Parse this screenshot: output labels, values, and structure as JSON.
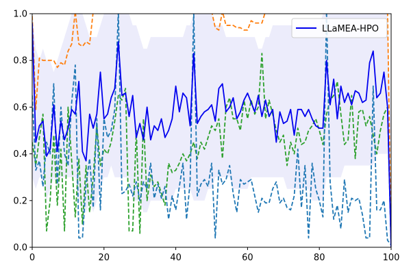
{
  "chart_data": {
    "type": "line",
    "title": "",
    "xlabel": "",
    "ylabel": "",
    "xlim": [
      0,
      100
    ],
    "ylim": [
      0,
      1
    ],
    "xticks": [
      0,
      20,
      40,
      60,
      80,
      100
    ],
    "yticks": [
      0.0,
      0.2,
      0.4,
      0.6,
      0.8,
      1.0
    ],
    "xtick_labels": [
      "0",
      "20",
      "40",
      "60",
      "80",
      "100"
    ],
    "ytick_labels": [
      "0.0",
      "0.2",
      "0.4",
      "0.6",
      "0.8",
      "1.0"
    ],
    "grid": false,
    "legend_position": "top-right",
    "legend": [
      {
        "name": "LLaMEA-HPO",
        "color": "#0000ee"
      }
    ],
    "x": [
      0,
      1,
      2,
      3,
      4,
      5,
      6,
      7,
      8,
      9,
      10,
      11,
      12,
      13,
      14,
      15,
      16,
      17,
      18,
      19,
      20,
      21,
      22,
      23,
      24,
      25,
      26,
      27,
      28,
      29,
      30,
      31,
      32,
      33,
      34,
      35,
      36,
      37,
      38,
      39,
      40,
      41,
      42,
      43,
      44,
      45,
      46,
      47,
      48,
      49,
      50,
      51,
      52,
      53,
      54,
      55,
      56,
      57,
      58,
      59,
      60,
      61,
      62,
      63,
      64,
      65,
      66,
      67,
      68,
      69,
      70,
      71,
      72,
      73,
      74,
      75,
      76,
      77,
      78,
      79,
      80,
      81,
      82,
      83,
      84,
      85,
      86,
      87,
      88,
      89,
      90,
      91,
      92,
      93,
      94,
      95,
      96,
      97,
      98,
      99,
      100
    ],
    "band": {
      "color": "#e6e6fa",
      "lower": [
        0.3,
        0.25,
        0.3,
        0.3,
        0.2,
        0.25,
        0.3,
        0.25,
        0.3,
        0.3,
        0.3,
        0.3,
        0.3,
        0.2,
        0.15,
        0.15,
        0.2,
        0.15,
        0.2,
        0.25,
        0.3,
        0.3,
        0.35,
        0.3,
        0.3,
        0.3,
        0.3,
        0.3,
        0.2,
        0.2,
        0.2,
        0.15,
        0.15,
        0.2,
        0.2,
        0.2,
        0.2,
        0.2,
        0.2,
        0.2,
        0.25,
        0.25,
        0.25,
        0.25,
        0.25,
        0.2,
        0.2,
        0.2,
        0.2,
        0.25,
        0.25,
        0.3,
        0.3,
        0.3,
        0.3,
        0.3,
        0.25,
        0.25,
        0.25,
        0.25,
        0.25,
        0.3,
        0.3,
        0.3,
        0.3,
        0.3,
        0.3,
        0.3,
        0.3,
        0.3,
        0.3,
        0.25,
        0.25,
        0.25,
        0.25,
        0.25,
        0.25,
        0.25,
        0.2,
        0.2,
        0.2,
        0.2,
        0.3,
        0.3,
        0.3,
        0.3,
        0.3,
        0.35,
        0.35,
        0.35,
        0.35,
        0.35,
        0.35,
        0.35,
        0.35,
        0.35,
        0.4,
        0.4,
        0.4,
        0.4,
        0.05
      ],
      "upper": [
        1.0,
        0.85,
        0.8,
        0.85,
        0.8,
        0.8,
        0.75,
        0.8,
        0.85,
        0.9,
        0.95,
        1.0,
        1.0,
        1.0,
        1.0,
        0.95,
        0.9,
        0.9,
        0.9,
        0.95,
        1.0,
        1.0,
        1.0,
        1.0,
        1.0,
        1.0,
        1.0,
        1.0,
        0.95,
        0.95,
        0.9,
        0.85,
        0.85,
        0.9,
        0.9,
        0.9,
        0.9,
        0.9,
        0.9,
        0.9,
        0.9,
        0.9,
        0.9,
        0.95,
        0.95,
        1.0,
        1.0,
        1.0,
        1.0,
        1.0,
        1.0,
        0.95,
        0.95,
        0.95,
        0.9,
        0.9,
        0.9,
        0.9,
        0.9,
        0.9,
        0.9,
        0.9,
        0.9,
        0.85,
        0.85,
        0.9,
        0.9,
        0.95,
        0.95,
        0.95,
        0.95,
        0.95,
        0.95,
        0.95,
        0.95,
        0.95,
        0.95,
        0.95,
        0.95,
        0.95,
        0.95,
        1.0,
        1.0,
        1.0,
        1.0,
        1.0,
        1.0,
        1.0,
        1.0,
        1.0,
        1.0,
        1.0,
        1.0,
        1.0,
        1.0,
        1.0,
        1.0,
        1.0,
        1.0,
        1.0,
        0.5
      ]
    },
    "series": [
      {
        "name": "",
        "color": "#ff7f0e",
        "dash": true,
        "values": [
          0.99,
          0.59,
          0.81,
          0.8,
          0.8,
          0.8,
          0.8,
          0.77,
          0.79,
          0.78,
          0.84,
          0.87,
          1.01,
          0.87,
          0.86,
          0.88,
          0.87,
          1.01,
          1.01,
          1.01,
          1.01,
          1.01,
          1.01,
          1.01,
          1.01,
          1.01,
          1.01,
          1.01,
          1.01,
          1.01,
          1.01,
          1.01,
          1.01,
          1.01,
          1.01,
          1.01,
          1.01,
          1.01,
          1.01,
          1.01,
          1.01,
          1.01,
          1.01,
          1.01,
          1.01,
          1.01,
          1.01,
          1.01,
          1.01,
          1.01,
          1.01,
          0.94,
          0.93,
          1.01,
          0.95,
          0.95,
          0.95,
          0.94,
          0.94,
          0.93,
          0.93,
          0.97,
          0.96,
          0.96,
          0.96,
          1.01,
          1.01,
          1.01,
          1.01,
          1.01,
          1.01,
          1.01,
          1.01,
          1.01,
          1.01,
          1.01,
          1.01,
          1.01,
          1.01,
          1.01,
          1.01,
          1.01,
          1.01,
          1.01,
          1.01,
          1.01,
          1.01,
          1.01,
          1.01,
          1.01,
          1.01,
          1.01,
          1.01,
          1.01,
          1.01,
          1.01,
          1.01,
          1.01,
          1.01,
          1.01,
          0.0
        ]
      },
      {
        "name": "",
        "color": "#2ca02c",
        "dash": true,
        "values": [
          0.45,
          0.35,
          0.47,
          0.57,
          0.07,
          0.2,
          0.48,
          0.18,
          0.42,
          0.07,
          0.6,
          0.37,
          0.13,
          0.38,
          0.1,
          0.35,
          0.15,
          0.3,
          0.52,
          0.35,
          0.42,
          0.4,
          0.45,
          0.54,
          0.65,
          0.63,
          0.68,
          0.07,
          0.07,
          0.5,
          0.06,
          0.55,
          0.2,
          0.31,
          0.26,
          0.28,
          0.23,
          0.18,
          0.36,
          0.32,
          0.33,
          0.36,
          0.4,
          0.37,
          0.4,
          0.45,
          0.38,
          0.45,
          0.42,
          0.47,
          0.52,
          0.5,
          0.55,
          0.38,
          0.6,
          0.64,
          0.55,
          0.55,
          0.5,
          0.63,
          0.55,
          0.63,
          0.57,
          0.6,
          0.83,
          0.55,
          0.63,
          0.57,
          0.5,
          0.45,
          0.48,
          0.35,
          0.45,
          0.4,
          0.51,
          0.44,
          0.45,
          0.5,
          0.52,
          0.55,
          0.5,
          0.44,
          0.57,
          0.63,
          0.65,
          0.71,
          0.57,
          0.44,
          0.46,
          0.65,
          0.38,
          0.58,
          0.59,
          0.52,
          0.56,
          0.48,
          0.4,
          0.5,
          0.57,
          0.6,
          0.0
        ]
      },
      {
        "name": "",
        "color": "#1f77b4",
        "dash": true,
        "values": [
          0.65,
          0.33,
          0.37,
          0.26,
          0.45,
          0.4,
          0.7,
          0.27,
          0.6,
          0.4,
          0.35,
          0.62,
          0.78,
          0.04,
          0.04,
          0.27,
          0.38,
          0.17,
          0.55,
          0.16,
          0.55,
          0.47,
          0.5,
          0.59,
          1.01,
          0.23,
          0.24,
          0.27,
          0.22,
          0.28,
          0.2,
          0.28,
          0.25,
          0.36,
          0.21,
          0.27,
          0.21,
          0.26,
          0.12,
          0.22,
          0.16,
          0.26,
          0.36,
          0.12,
          0.28,
          1.01,
          0.22,
          0.27,
          0.29,
          0.26,
          0.36,
          0.04,
          0.33,
          0.27,
          0.29,
          0.35,
          0.23,
          0.15,
          0.29,
          0.27,
          0.28,
          0.29,
          0.22,
          0.15,
          0.21,
          0.19,
          0.19,
          0.25,
          0.28,
          0.19,
          0.21,
          0.17,
          0.16,
          0.22,
          0.42,
          0.17,
          0.35,
          0.04,
          0.36,
          0.25,
          0.2,
          0.13,
          1.01,
          0.28,
          0.12,
          0.18,
          0.08,
          0.29,
          0.15,
          0.21,
          0.2,
          0.21,
          0.14,
          0.04,
          0.04,
          0.69,
          0.16,
          0.16,
          0.2,
          0.03,
          0.01
        ]
      },
      {
        "name": "LLaMEA-HPO",
        "color": "#0000ee",
        "dash": false,
        "values": [
          0.96,
          0.45,
          0.52,
          0.54,
          0.39,
          0.42,
          0.61,
          0.41,
          0.54,
          0.46,
          0.51,
          0.59,
          0.57,
          0.71,
          0.41,
          0.37,
          0.57,
          0.51,
          0.57,
          0.75,
          0.55,
          0.57,
          0.64,
          0.68,
          0.88,
          0.65,
          0.66,
          0.56,
          0.65,
          0.47,
          0.53,
          0.46,
          0.6,
          0.46,
          0.52,
          0.5,
          0.55,
          0.47,
          0.5,
          0.55,
          0.69,
          0.58,
          0.66,
          0.64,
          0.52,
          0.83,
          0.53,
          0.56,
          0.58,
          0.59,
          0.61,
          0.54,
          0.68,
          0.7,
          0.58,
          0.6,
          0.64,
          0.55,
          0.58,
          0.63,
          0.66,
          0.62,
          0.58,
          0.65,
          0.56,
          0.63,
          0.56,
          0.59,
          0.45,
          0.58,
          0.53,
          0.54,
          0.59,
          0.48,
          0.59,
          0.59,
          0.56,
          0.59,
          0.55,
          0.52,
          0.51,
          0.51,
          0.8,
          0.61,
          0.72,
          0.55,
          0.69,
          0.62,
          0.66,
          0.61,
          0.67,
          0.66,
          0.62,
          0.63,
          0.79,
          0.84,
          0.64,
          0.66,
          0.75,
          0.6,
          0.0
        ]
      }
    ]
  }
}
